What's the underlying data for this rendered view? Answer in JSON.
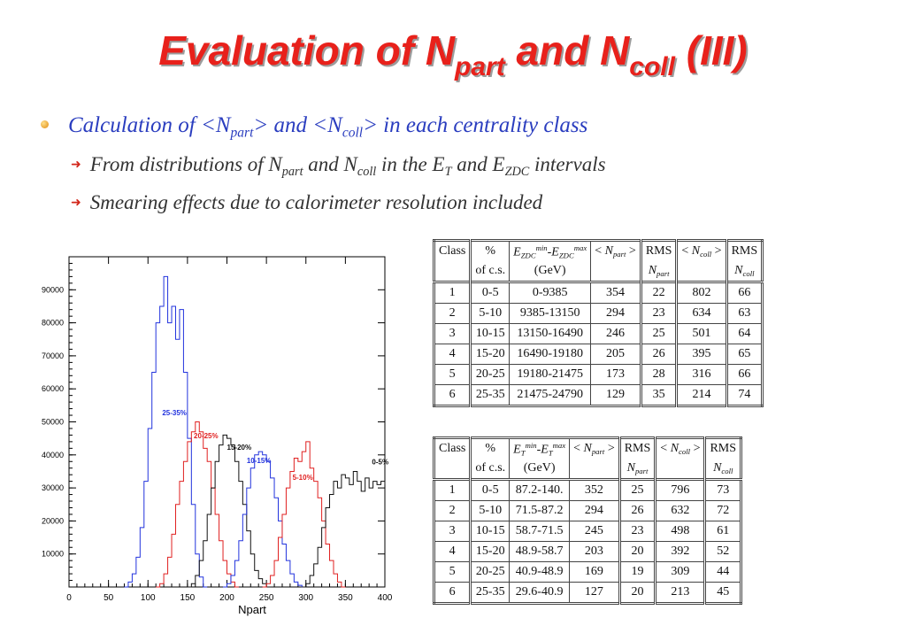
{
  "title": {
    "text1": "Evaluation of N",
    "sub1": "part",
    "text2": " and N",
    "sub2": "coll",
    "text3": " (III)"
  },
  "bullet": {
    "t1": "Calculation of <N",
    "s1": "part",
    "t2": "> and <N",
    "s2": "coll",
    "t3": "> in each centrality class"
  },
  "sub_bullet_1": {
    "t1": "From distributions of N",
    "s1": "part",
    "t2": " and N",
    "s2": "coll",
    "t3": " in the E",
    "s3": "T",
    "t4": " and E",
    "s4": "ZDC",
    "t5": " intervals"
  },
  "sub_bullet_2": {
    "t1": "Smearing effects due to calorimeter resolution included"
  },
  "chart_data": {
    "type": "line",
    "xlabel": "Npart",
    "ylabel": "",
    "xlim": [
      0,
      400
    ],
    "ylim": [
      0,
      100000
    ],
    "xticks": [
      "0",
      "50",
      "100",
      "150",
      "200",
      "250",
      "300",
      "350",
      "400"
    ],
    "yticks": [
      "10000",
      "20000",
      "30000",
      "40000",
      "50000",
      "60000",
      "70000",
      "80000",
      "90000"
    ],
    "series": [
      {
        "name": "25-35%",
        "color": "#2233dd",
        "x": [
          70,
          75,
          80,
          85,
          90,
          95,
          100,
          105,
          110,
          115,
          120,
          125,
          130,
          135,
          140,
          145,
          150,
          155,
          160,
          165,
          170
        ],
        "y": [
          0,
          1500,
          4000,
          9000,
          18000,
          32000,
          48000,
          65000,
          80000,
          85000,
          94000,
          80000,
          85000,
          75000,
          84000,
          65000,
          45000,
          25000,
          10000,
          3000,
          0
        ]
      },
      {
        "name": "20-25%",
        "color": "#e02020",
        "x": [
          110,
          115,
          120,
          125,
          130,
          135,
          140,
          145,
          150,
          155,
          160,
          165,
          170,
          175,
          180,
          185,
          190,
          195,
          200,
          205,
          210
        ],
        "y": [
          0,
          1000,
          4000,
          9000,
          16000,
          25000,
          32000,
          38000,
          44000,
          47000,
          50000,
          47000,
          42000,
          38000,
          30000,
          22000,
          14000,
          8000,
          4000,
          1500,
          0
        ]
      },
      {
        "name": "15-20%",
        "color": "#111111",
        "x": [
          150,
          155,
          160,
          165,
          170,
          175,
          180,
          185,
          190,
          195,
          200,
          205,
          210,
          215,
          220,
          225,
          230,
          235,
          240,
          245,
          250
        ],
        "y": [
          0,
          1000,
          3500,
          8000,
          14000,
          22000,
          30000,
          38000,
          43000,
          46000,
          45000,
          43000,
          38000,
          32000,
          25000,
          17000,
          10000,
          5000,
          2500,
          1000,
          0
        ]
      },
      {
        "name": "10-15%",
        "color": "#2233dd",
        "x": [
          195,
          200,
          205,
          210,
          215,
          220,
          225,
          230,
          235,
          240,
          245,
          250,
          255,
          260,
          265,
          270,
          275,
          280,
          285,
          290,
          295
        ],
        "y": [
          0,
          1000,
          3500,
          8000,
          14000,
          22000,
          30000,
          36000,
          40000,
          41000,
          40000,
          38000,
          33000,
          27000,
          20000,
          13000,
          8000,
          4000,
          1500,
          500,
          0
        ]
      },
      {
        "name": "5-10%",
        "color": "#e02020",
        "x": [
          245,
          250,
          255,
          260,
          265,
          270,
          275,
          280,
          285,
          290,
          295,
          300,
          305,
          310,
          315,
          320,
          325,
          330,
          335,
          340,
          345
        ],
        "y": [
          0,
          1000,
          3500,
          8000,
          15000,
          22000,
          30000,
          35000,
          39000,
          38000,
          41000,
          44000,
          36000,
          32000,
          27000,
          20000,
          13000,
          8000,
          4000,
          1500,
          0
        ]
      },
      {
        "name": "0-5%",
        "color": "#111111",
        "x": [
          295,
          300,
          305,
          310,
          315,
          320,
          325,
          330,
          335,
          340,
          345,
          350,
          355,
          360,
          365,
          370,
          375,
          380,
          385,
          390,
          395,
          400
        ],
        "y": [
          0,
          1000,
          3500,
          7000,
          12000,
          18000,
          24000,
          28000,
          32000,
          30000,
          34000,
          33000,
          31000,
          35000,
          32000,
          29000,
          33000,
          30000,
          32000,
          31000,
          32000,
          31000
        ]
      }
    ]
  },
  "table1": {
    "headers_row1": [
      "Class",
      "%",
      "E_ZDC^min-E_ZDC^max",
      "< N_part >",
      "RMS",
      "< N_coll >",
      "RMS"
    ],
    "headers_row2": [
      "",
      "of c.s.",
      "(GeV)",
      "",
      "N_part",
      "",
      "N_coll"
    ],
    "rows": [
      [
        "1",
        "0-5",
        "0-9385",
        "354",
        "22",
        "802",
        "66"
      ],
      [
        "2",
        "5-10",
        "9385-13150",
        "294",
        "23",
        "634",
        "63"
      ],
      [
        "3",
        "10-15",
        "13150-16490",
        "246",
        "25",
        "501",
        "64"
      ],
      [
        "4",
        "15-20",
        "16490-19180",
        "205",
        "26",
        "395",
        "65"
      ],
      [
        "5",
        "20-25",
        "19180-21475",
        "173",
        "28",
        "316",
        "66"
      ],
      [
        "6",
        "25-35",
        "21475-24790",
        "129",
        "35",
        "214",
        "74"
      ]
    ]
  },
  "table2": {
    "headers_row1": [
      "Class",
      "%",
      "E_T^min-E_T^max",
      "< N_part >",
      "RMS",
      "< N_coll >",
      "RMS"
    ],
    "headers_row2": [
      "",
      "of c.s.",
      "(GeV)",
      "",
      "N_part",
      "",
      "N_coll"
    ],
    "rows": [
      [
        "1",
        "0-5",
        "87.2-140.",
        "352",
        "25",
        "796",
        "73"
      ],
      [
        "2",
        "5-10",
        "71.5-87.2",
        "294",
        "26",
        "632",
        "72"
      ],
      [
        "3",
        "10-15",
        "58.7-71.5",
        "245",
        "23",
        "498",
        "61"
      ],
      [
        "4",
        "15-20",
        "48.9-58.7",
        "203",
        "20",
        "392",
        "52"
      ],
      [
        "5",
        "20-25",
        "40.9-48.9",
        "169",
        "19",
        "309",
        "44"
      ],
      [
        "6",
        "25-35",
        "29.6-40.9",
        "127",
        "20",
        "213",
        "45"
      ]
    ]
  }
}
